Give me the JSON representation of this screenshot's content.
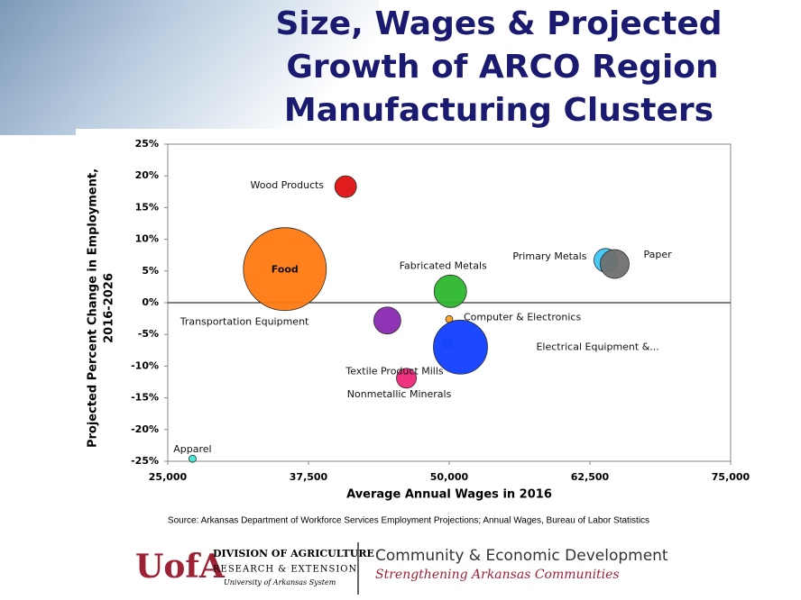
{
  "chart_data": {
    "type": "scatter",
    "title": [
      "Size, Wages & Projected",
      "Growth of ARCO Region",
      "Manufacturing Clusters"
    ],
    "xlabel": "Average Annual Wages in 2016",
    "ylabel": [
      "Projected Percent Change in Employment,",
      "2016-2026"
    ],
    "xlim": [
      25000,
      75000
    ],
    "xticks": [
      {
        "value": 25000,
        "label": "25,000"
      },
      {
        "value": 37500,
        "label": "37,500"
      },
      {
        "value": 50000,
        "label": "50,000"
      },
      {
        "value": 62500,
        "label": "62,500"
      },
      {
        "value": 75000,
        "label": "75,000"
      }
    ],
    "ylim": [
      -25,
      25
    ],
    "yticks": [
      {
        "value": 25,
        "label": "25%"
      },
      {
        "value": 20,
        "label": "20%"
      },
      {
        "value": 15,
        "label": "15%"
      },
      {
        "value": 10,
        "label": "10%"
      },
      {
        "value": 5,
        "label": "5%"
      },
      {
        "value": 0,
        "label": "0%"
      },
      {
        "value": -5,
        "label": "-5%"
      },
      {
        "value": -10,
        "label": "-10%"
      },
      {
        "value": -15,
        "label": "-15%"
      },
      {
        "value": -20,
        "label": "-20%"
      },
      {
        "value": -25,
        "label": "-25%"
      }
    ],
    "grid": false,
    "names": [
      "Wood Products",
      "Food",
      "Transportation Equipment",
      "Textile Product Mills",
      "Fabricated Metals",
      "Computer & Electronics",
      "Electrical Equipment &...",
      "Nonmetallic Minerals",
      "Primary Metals",
      "Paper",
      "Apparel"
    ],
    "x": [
      40800,
      35400,
      44500,
      49800,
      50100,
      50000,
      51000,
      46200,
      63900,
      64700,
      27200
    ],
    "values": [
      18.3,
      5.3,
      -2.8,
      -6.3,
      1.8,
      -2.6,
      -7.0,
      -11.9,
      6.7,
      6.1,
      -24.6
    ],
    "sizes": [
      545,
      8000,
      850,
      95,
      1225,
      60,
      3400,
      460,
      640,
      970,
      60
    ],
    "colors": [
      "#e01010",
      "#ff7a10",
      "#8a2ab0",
      "#9aa0c0",
      "#2eb82e",
      "#ffa020",
      "#1040ff",
      "#f0287a",
      "#3fc8f8",
      "#707070",
      "#40e8d8"
    ],
    "source": "Source: Arkansas Department of Workforce Services Employment Projections; Annual Wages, Bureau of Labor Statistics"
  },
  "footer": {
    "logo_mark": "UofA",
    "division": "DIVISION OF AGRICULTURE",
    "research": "RESEARCH & EXTENSION",
    "system": "University of Arkansas System",
    "ced": "Community & Economic Development",
    "tagline": "Strengthening Arkansas Communities"
  }
}
